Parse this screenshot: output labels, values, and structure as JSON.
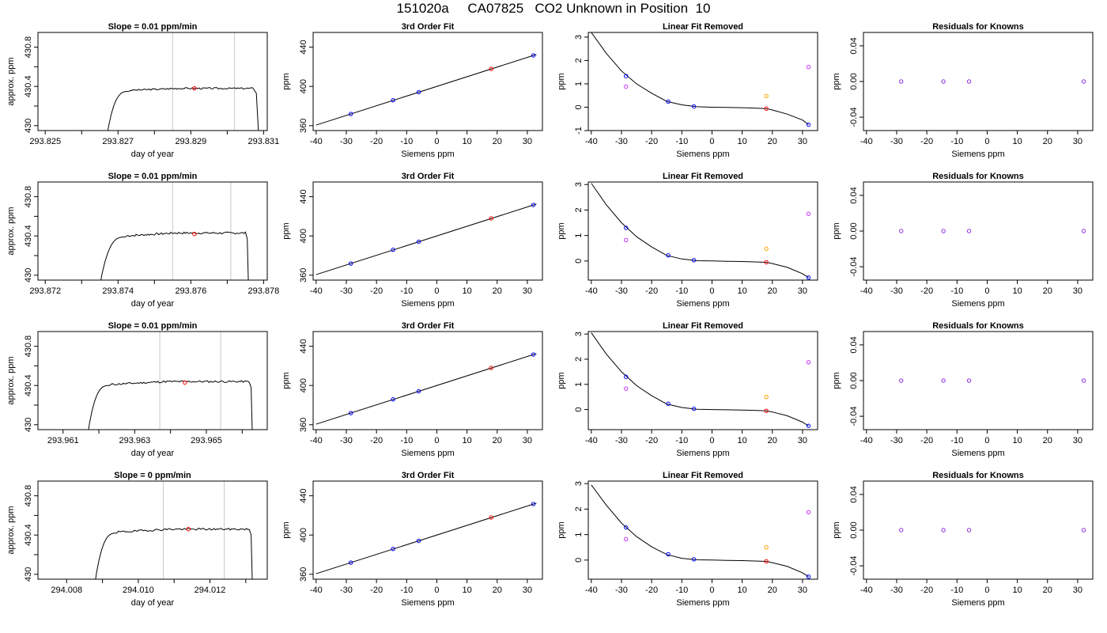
{
  "figure": {
    "title": "151020a     CA07825   CO2 Unknown in Position  10",
    "colors": {
      "line": "#000000",
      "vline": "#c8c8c8",
      "red": "#ff0000",
      "blue": "#0000ff",
      "magenta": "#cc33ff",
      "orange": "#ffa500",
      "purple": "#8a2be2"
    }
  },
  "chart_data": [
    {
      "type": "line",
      "panel": "timeseries",
      "row": 0,
      "title": "Slope =  0.01  ppm/min",
      "xlabel": "day of year",
      "ylabel": "approx. ppm",
      "xlim": [
        293.8248,
        293.8311
      ],
      "ylim": [
        429.95,
        430.95
      ],
      "xticks": [
        293.825,
        293.827,
        293.829,
        293.831
      ],
      "xtick_decimals": 3,
      "yticks": [
        430.0,
        430.4,
        430.8
      ],
      "vlines": [
        293.8285,
        293.8302
      ],
      "marker": {
        "x": 293.8291,
        "y": 430.38
      },
      "trace": {
        "start_x": 293.8266,
        "rise_x": 293.8273,
        "plateau": 430.38,
        "plateau_step": 0.02,
        "end_x": 293.8307,
        "drop_x": 293.8309,
        "noise": 0.008,
        "seed": 3
      }
    },
    {
      "type": "line",
      "panel": "fit",
      "row": 0,
      "title": "3rd Order Fit",
      "xlabel": "Siemens ppm",
      "ylabel": "ppm",
      "xlim": [
        -41,
        35
      ],
      "ylim": [
        355,
        455
      ],
      "xticks": [
        -40,
        -30,
        -20,
        -10,
        0,
        10,
        20,
        30
      ],
      "yticks": [
        360,
        400,
        440
      ],
      "line": {
        "slope": 0.985,
        "intercept": 400.0
      },
      "points": [
        {
          "x": -28.5,
          "y": 371.9,
          "color": "blue"
        },
        {
          "x": -14.5,
          "y": 385.9,
          "color": "blue"
        },
        {
          "x": -6,
          "y": 394.1,
          "color": "blue"
        },
        {
          "x": 32,
          "y": 431.6,
          "color": "blue"
        },
        {
          "x": 18,
          "y": 417.9,
          "color": "red"
        }
      ]
    },
    {
      "type": "scatter",
      "panel": "linear_removed",
      "row": 0,
      "title": "Linear Fit Removed",
      "xlabel": "Siemens ppm",
      "ylabel": "ppm",
      "xlim": [
        -41,
        35
      ],
      "ylim": [
        -1.0,
        3.2
      ],
      "xticks": [
        -40,
        -30,
        -20,
        -10,
        0,
        10,
        20,
        30
      ],
      "yticks": [
        -1,
        0,
        1,
        2,
        3
      ],
      "curve": {
        "x": [
          -40,
          -35,
          -30,
          -25,
          -20,
          -15,
          -10,
          -5,
          0,
          5,
          10,
          15,
          18,
          20,
          25,
          30,
          32
        ],
        "y": [
          3.2,
          2.3,
          1.55,
          1.0,
          0.6,
          0.25,
          0.1,
          0.02,
          0.0,
          -0.01,
          -0.02,
          -0.04,
          -0.06,
          -0.12,
          -0.3,
          -0.55,
          -0.75
        ]
      },
      "points": [
        {
          "x": -28.5,
          "y": 1.33,
          "color": "blue"
        },
        {
          "x": -14.5,
          "y": 0.24,
          "color": "blue"
        },
        {
          "x": -6,
          "y": 0.03,
          "color": "blue"
        },
        {
          "x": 32,
          "y": -0.75,
          "color": "blue"
        },
        {
          "x": 18,
          "y": -0.06,
          "color": "red"
        },
        {
          "x": -28.5,
          "y": 0.88,
          "color": "magenta"
        },
        {
          "x": 32,
          "y": 1.72,
          "color": "magenta"
        },
        {
          "x": 18,
          "y": 0.48,
          "color": "orange"
        }
      ]
    },
    {
      "type": "scatter",
      "panel": "residuals",
      "row": 0,
      "title": "Residuals for Knowns",
      "xlabel": "Siemens ppm",
      "ylabel": "ppm",
      "xlim": [
        -41,
        35
      ],
      "ylim": [
        -0.055,
        0.055
      ],
      "xticks": [
        -40,
        -30,
        -20,
        -10,
        0,
        10,
        20,
        30
      ],
      "yticks": [
        -0.04,
        0.0,
        0.04
      ],
      "ytick_decimals": 2,
      "points": [
        {
          "x": -28.5,
          "y": 0,
          "color": "purple"
        },
        {
          "x": -14.5,
          "y": 0,
          "color": "purple"
        },
        {
          "x": -6,
          "y": 0,
          "color": "purple"
        },
        {
          "x": 32,
          "y": 0,
          "color": "purple"
        }
      ]
    },
    {
      "type": "line",
      "panel": "timeseries",
      "row": 1,
      "title": "Slope =  0.01  ppm/min",
      "xlabel": "day of year",
      "ylabel": "approx. ppm",
      "xlim": [
        293.8718,
        293.8781
      ],
      "ylim": [
        429.95,
        430.95
      ],
      "xticks": [
        293.872,
        293.874,
        293.876,
        293.878
      ],
      "xtick_decimals": 3,
      "yticks": [
        430.0,
        430.4,
        430.8
      ],
      "vlines": [
        293.8755,
        293.8771
      ],
      "marker": {
        "x": 293.8761,
        "y": 430.42
      },
      "trace": {
        "start_x": 293.8734,
        "rise_x": 293.8742,
        "plateau": 430.42,
        "plateau_step": 0.03,
        "end_x": 293.8775,
        "drop_x": 293.8776,
        "noise": 0.01,
        "seed": 7
      }
    },
    {
      "type": "line",
      "panel": "fit",
      "row": 1,
      "title": "3rd Order Fit",
      "xlabel": "Siemens ppm",
      "ylabel": "ppm",
      "xlim": [
        -41,
        35
      ],
      "ylim": [
        355,
        455
      ],
      "xticks": [
        -40,
        -30,
        -20,
        -10,
        0,
        10,
        20,
        30
      ],
      "yticks": [
        360,
        400,
        440
      ],
      "line": {
        "slope": 0.985,
        "intercept": 400.0
      },
      "points": [
        {
          "x": -28.5,
          "y": 371.9,
          "color": "blue"
        },
        {
          "x": -14.5,
          "y": 385.9,
          "color": "blue"
        },
        {
          "x": -6,
          "y": 394.1,
          "color": "blue"
        },
        {
          "x": 32,
          "y": 431.6,
          "color": "blue"
        },
        {
          "x": 18,
          "y": 417.9,
          "color": "red"
        }
      ]
    },
    {
      "type": "scatter",
      "panel": "linear_removed",
      "row": 1,
      "title": "Linear Fit Removed",
      "xlabel": "Siemens ppm",
      "ylabel": "ppm",
      "xlim": [
        -41,
        35
      ],
      "ylim": [
        -0.75,
        3.1
      ],
      "xticks": [
        -40,
        -30,
        -20,
        -10,
        0,
        10,
        20,
        30
      ],
      "yticks": [
        0,
        1,
        2,
        3
      ],
      "curve": {
        "x": [
          -40,
          -35,
          -30,
          -25,
          -20,
          -15,
          -10,
          -5,
          0,
          5,
          10,
          15,
          18,
          20,
          25,
          30,
          32
        ],
        "y": [
          3.05,
          2.2,
          1.5,
          0.95,
          0.55,
          0.22,
          0.08,
          0.01,
          0.0,
          -0.01,
          -0.02,
          -0.04,
          -0.05,
          -0.1,
          -0.25,
          -0.5,
          -0.65
        ]
      },
      "points": [
        {
          "x": -28.5,
          "y": 1.3,
          "color": "blue"
        },
        {
          "x": -14.5,
          "y": 0.22,
          "color": "blue"
        },
        {
          "x": -6,
          "y": 0.03,
          "color": "blue"
        },
        {
          "x": 32,
          "y": -0.65,
          "color": "blue"
        },
        {
          "x": 18,
          "y": -0.05,
          "color": "red"
        },
        {
          "x": -28.5,
          "y": 0.82,
          "color": "magenta"
        },
        {
          "x": 32,
          "y": 1.85,
          "color": "magenta"
        },
        {
          "x": 18,
          "y": 0.48,
          "color": "orange"
        }
      ]
    },
    {
      "type": "scatter",
      "panel": "residuals",
      "row": 1,
      "title": "Residuals for Knowns",
      "xlabel": "Siemens ppm",
      "ylabel": "ppm",
      "xlim": [
        -41,
        35
      ],
      "ylim": [
        -0.055,
        0.055
      ],
      "xticks": [
        -40,
        -30,
        -20,
        -10,
        0,
        10,
        20,
        30
      ],
      "yticks": [
        -0.04,
        0.0,
        0.04
      ],
      "ytick_decimals": 2,
      "points": [
        {
          "x": -28.5,
          "y": 0,
          "color": "purple"
        },
        {
          "x": -14.5,
          "y": 0,
          "color": "purple"
        },
        {
          "x": -6,
          "y": 0,
          "color": "purple"
        },
        {
          "x": 32,
          "y": 0,
          "color": "purple"
        }
      ]
    },
    {
      "type": "line",
      "panel": "timeseries",
      "row": 2,
      "title": "Slope =  0.01  ppm/min",
      "xlabel": "day of year",
      "ylabel": "approx. ppm",
      "xlim": [
        293.9603,
        293.9667
      ],
      "ylim": [
        429.95,
        430.95
      ],
      "xticks": [
        293.961,
        293.963,
        293.965
      ],
      "xtick_decimals": 3,
      "yticks": [
        430.0,
        430.4,
        430.8
      ],
      "vlines": [
        293.9637,
        293.9654
      ],
      "marker": {
        "x": 293.9644,
        "y": 430.43
      },
      "trace": {
        "start_x": 293.9616,
        "rise_x": 293.9623,
        "plateau": 430.43,
        "plateau_step": 0.03,
        "end_x": 293.9662,
        "drop_x": 293.9663,
        "noise": 0.01,
        "seed": 11
      }
    },
    {
      "type": "line",
      "panel": "fit",
      "row": 2,
      "title": "3rd Order Fit",
      "xlabel": "Siemens ppm",
      "ylabel": "ppm",
      "xlim": [
        -41,
        35
      ],
      "ylim": [
        355,
        455
      ],
      "xticks": [
        -40,
        -30,
        -20,
        -10,
        0,
        10,
        20,
        30
      ],
      "yticks": [
        360,
        400,
        440
      ],
      "line": {
        "slope": 0.985,
        "intercept": 400.0
      },
      "points": [
        {
          "x": -28.5,
          "y": 371.9,
          "color": "blue"
        },
        {
          "x": -14.5,
          "y": 385.9,
          "color": "blue"
        },
        {
          "x": -6,
          "y": 394.1,
          "color": "blue"
        },
        {
          "x": 32,
          "y": 431.6,
          "color": "blue"
        },
        {
          "x": 18,
          "y": 417.9,
          "color": "red"
        }
      ]
    },
    {
      "type": "scatter",
      "panel": "linear_removed",
      "row": 2,
      "title": "Linear Fit Removed",
      "xlabel": "Siemens ppm",
      "ylabel": "ppm",
      "xlim": [
        -41,
        35
      ],
      "ylim": [
        -0.8,
        3.1
      ],
      "xticks": [
        -40,
        -30,
        -20,
        -10,
        0,
        10,
        20,
        30
      ],
      "yticks": [
        0,
        1,
        2,
        3
      ],
      "curve": {
        "x": [
          -40,
          -35,
          -30,
          -25,
          -20,
          -15,
          -10,
          -5,
          0,
          5,
          10,
          15,
          18,
          20,
          25,
          30,
          32
        ],
        "y": [
          3.05,
          2.2,
          1.5,
          0.95,
          0.55,
          0.22,
          0.08,
          0.01,
          0.0,
          -0.01,
          -0.02,
          -0.04,
          -0.05,
          -0.1,
          -0.25,
          -0.5,
          -0.65
        ]
      },
      "points": [
        {
          "x": -28.5,
          "y": 1.3,
          "color": "blue"
        },
        {
          "x": -14.5,
          "y": 0.23,
          "color": "blue"
        },
        {
          "x": -6,
          "y": 0.03,
          "color": "blue"
        },
        {
          "x": 32,
          "y": -0.65,
          "color": "blue"
        },
        {
          "x": 18,
          "y": -0.05,
          "color": "red"
        },
        {
          "x": -28.5,
          "y": 0.83,
          "color": "magenta"
        },
        {
          "x": 32,
          "y": 1.88,
          "color": "magenta"
        },
        {
          "x": 18,
          "y": 0.5,
          "color": "orange"
        }
      ]
    },
    {
      "type": "scatter",
      "panel": "residuals",
      "row": 2,
      "title": "Residuals for Knowns",
      "xlabel": "Siemens ppm",
      "ylabel": "ppm",
      "xlim": [
        -41,
        35
      ],
      "ylim": [
        -0.055,
        0.055
      ],
      "xticks": [
        -40,
        -30,
        -20,
        -10,
        0,
        10,
        20,
        30
      ],
      "yticks": [
        -0.04,
        0.0,
        0.04
      ],
      "ytick_decimals": 2,
      "points": [
        {
          "x": -28.5,
          "y": 0,
          "color": "purple"
        },
        {
          "x": -14.5,
          "y": 0,
          "color": "purple"
        },
        {
          "x": -6,
          "y": 0,
          "color": "purple"
        },
        {
          "x": 32,
          "y": 0,
          "color": "purple"
        }
      ]
    },
    {
      "type": "line",
      "panel": "timeseries",
      "row": 3,
      "title": "Slope =  0  ppm/min",
      "xlabel": "day of year",
      "ylabel": "approx. ppm",
      "xlim": [
        294.0072,
        294.0136
      ],
      "ylim": [
        429.95,
        430.95
      ],
      "xticks": [
        294.008,
        294.01,
        294.012
      ],
      "xtick_decimals": 3,
      "yticks": [
        430.0,
        430.4,
        430.8
      ],
      "vlines": [
        294.0107,
        294.0124
      ],
      "marker": {
        "x": 294.0114,
        "y": 430.46
      },
      "trace": {
        "start_x": 294.0087,
        "rise_x": 294.0094,
        "plateau": 430.45,
        "plateau_step": 0.03,
        "end_x": 294.0131,
        "drop_x": 294.0132,
        "noise": 0.01,
        "seed": 19
      }
    },
    {
      "type": "line",
      "panel": "fit",
      "row": 3,
      "title": "3rd Order Fit",
      "xlabel": "Siemens ppm",
      "ylabel": "ppm",
      "xlim": [
        -41,
        35
      ],
      "ylim": [
        355,
        455
      ],
      "xticks": [
        -40,
        -30,
        -20,
        -10,
        0,
        10,
        20,
        30
      ],
      "yticks": [
        360,
        400,
        440
      ],
      "line": {
        "slope": 0.985,
        "intercept": 400.0
      },
      "points": [
        {
          "x": -28.5,
          "y": 371.9,
          "color": "blue"
        },
        {
          "x": -14.5,
          "y": 385.9,
          "color": "blue"
        },
        {
          "x": -6,
          "y": 394.1,
          "color": "blue"
        },
        {
          "x": 32,
          "y": 431.6,
          "color": "blue"
        },
        {
          "x": 18,
          "y": 417.9,
          "color": "red"
        }
      ]
    },
    {
      "type": "scatter",
      "panel": "linear_removed",
      "row": 3,
      "title": "Linear Fit Removed",
      "xlabel": "Siemens ppm",
      "ylabel": "ppm",
      "xlim": [
        -41,
        35
      ],
      "ylim": [
        -0.75,
        3.1
      ],
      "xticks": [
        -40,
        -30,
        -20,
        -10,
        0,
        10,
        20,
        30
      ],
      "yticks": [
        0,
        1,
        2,
        3
      ],
      "curve": {
        "x": [
          -40,
          -35,
          -30,
          -25,
          -20,
          -15,
          -10,
          -5,
          0,
          5,
          10,
          15,
          18,
          20,
          25,
          30,
          32
        ],
        "y": [
          2.95,
          2.15,
          1.45,
          0.92,
          0.52,
          0.22,
          0.07,
          0.01,
          0.0,
          -0.01,
          -0.02,
          -0.04,
          -0.05,
          -0.1,
          -0.25,
          -0.5,
          -0.65
        ]
      },
      "points": [
        {
          "x": -28.5,
          "y": 1.28,
          "color": "blue"
        },
        {
          "x": -14.5,
          "y": 0.23,
          "color": "blue"
        },
        {
          "x": -6,
          "y": 0.03,
          "color": "blue"
        },
        {
          "x": 32,
          "y": -0.65,
          "color": "blue"
        },
        {
          "x": 18,
          "y": -0.05,
          "color": "red"
        },
        {
          "x": -28.5,
          "y": 0.82,
          "color": "magenta"
        },
        {
          "x": 32,
          "y": 1.88,
          "color": "magenta"
        },
        {
          "x": 18,
          "y": 0.5,
          "color": "orange"
        }
      ]
    },
    {
      "type": "scatter",
      "panel": "residuals",
      "row": 3,
      "title": "Residuals for Knowns",
      "xlabel": "Siemens ppm",
      "ylabel": "ppm",
      "xlim": [
        -41,
        35
      ],
      "ylim": [
        -0.055,
        0.055
      ],
      "xticks": [
        -40,
        -30,
        -20,
        -10,
        0,
        10,
        20,
        30
      ],
      "yticks": [
        -0.04,
        0.0,
        0.04
      ],
      "ytick_decimals": 2,
      "points": [
        {
          "x": -28.5,
          "y": 0,
          "color": "purple"
        },
        {
          "x": -14.5,
          "y": 0,
          "color": "purple"
        },
        {
          "x": -6,
          "y": 0,
          "color": "purple"
        },
        {
          "x": 32,
          "y": 0,
          "color": "purple"
        }
      ]
    }
  ]
}
